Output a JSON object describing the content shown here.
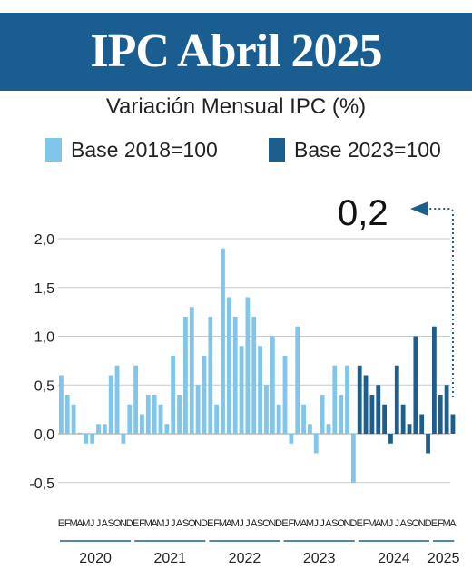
{
  "header": {
    "title": "IPC Abril 2025"
  },
  "colors": {
    "banner": "#1a5d90",
    "base_2018": "#7fc6ea",
    "base_2023": "#1c5f8f",
    "grid": "#c9c9c9",
    "text": "#222222"
  },
  "chart_data": {
    "type": "bar",
    "title": "Variación Mensual IPC (%)",
    "xlabel": "",
    "ylabel": "",
    "ylim": [
      -0.5,
      2.0
    ],
    "yticks": [
      -0.5,
      0.0,
      0.5,
      1.0,
      1.5,
      2.0
    ],
    "ytick_labels": [
      "-0,5",
      "0,0",
      "0,5",
      "1,0",
      "1,5",
      "2,0"
    ],
    "grid": true,
    "legend_position": "top",
    "months": [
      "E",
      "F",
      "M",
      "A",
      "M",
      "J",
      "J",
      "A",
      "S",
      "O",
      "N",
      "D",
      "E",
      "F",
      "M",
      "A",
      "M",
      "J",
      "J",
      "A",
      "S",
      "O",
      "N",
      "D",
      "E",
      "F",
      "M",
      "A",
      "M",
      "J",
      "J",
      "A",
      "S",
      "O",
      "N",
      "D",
      "E",
      "F",
      "M",
      "A",
      "M",
      "J",
      "J",
      "A",
      "S",
      "O",
      "N",
      "D",
      "E",
      "F",
      "M",
      "A",
      "M",
      "J",
      "J",
      "A",
      "S",
      "O",
      "N",
      "D",
      "E",
      "F",
      "M",
      "A"
    ],
    "years": [
      {
        "label": "2020",
        "start": 0,
        "count": 12
      },
      {
        "label": "2021",
        "start": 12,
        "count": 12
      },
      {
        "label": "2022",
        "start": 24,
        "count": 12
      },
      {
        "label": "2023",
        "start": 36,
        "count": 12
      },
      {
        "label": "2024",
        "start": 48,
        "count": 12
      },
      {
        "label": "2025",
        "start": 60,
        "count": 4
      }
    ],
    "series": [
      {
        "name": "Base 2018=100",
        "color": "#7fc6ea",
        "start": 0,
        "values": [
          0.6,
          0.4,
          0.3,
          0.0,
          -0.1,
          -0.1,
          0.1,
          0.1,
          0.6,
          0.7,
          -0.1,
          0.3,
          0.7,
          0.2,
          0.4,
          0.4,
          0.3,
          0.1,
          0.8,
          0.4,
          1.2,
          1.3,
          0.5,
          0.8,
          1.2,
          0.3,
          1.9,
          1.4,
          1.2,
          0.9,
          1.4,
          1.2,
          0.9,
          0.5,
          1.0,
          0.3,
          0.8,
          -0.1,
          1.1,
          0.3,
          0.1,
          -0.2,
          0.4,
          0.1,
          0.7,
          0.4,
          0.7,
          -0.5
        ]
      },
      {
        "name": "Base 2023=100",
        "color": "#1c5f8f",
        "start": 48,
        "values": [
          0.7,
          0.6,
          0.4,
          0.5,
          0.3,
          -0.1,
          0.7,
          0.3,
          0.1,
          1.0,
          0.2,
          -0.2,
          1.1,
          0.4,
          0.5,
          0.2
        ]
      }
    ],
    "annotation": {
      "text": "0,2",
      "target_index": 63
    }
  }
}
